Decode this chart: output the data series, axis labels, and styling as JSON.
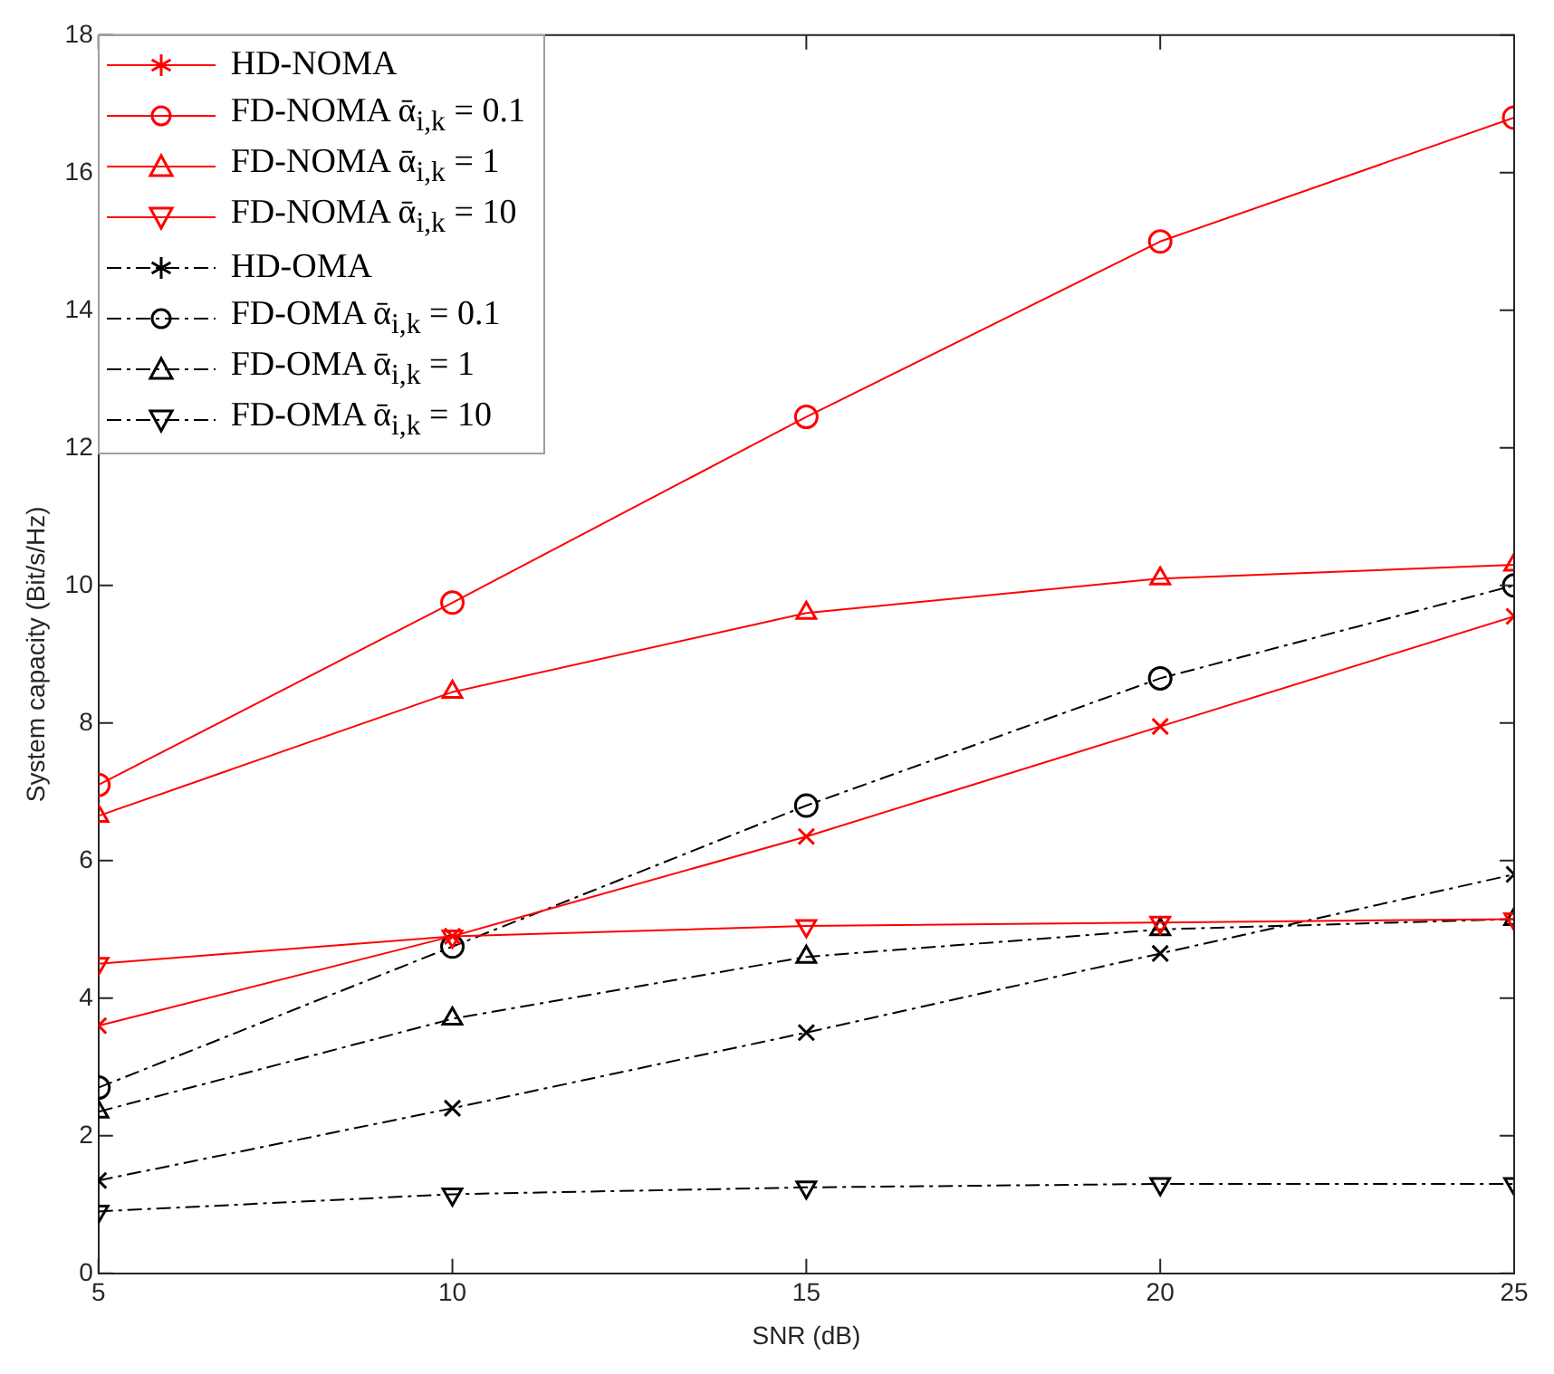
{
  "chart_data": {
    "type": "line",
    "xlabel": "SNR (dB)",
    "ylabel": "System capacity (Bit/s/Hz)",
    "x": [
      5,
      10,
      15,
      20,
      25
    ],
    "series": [
      {
        "name": "HD-NOMA",
        "color": "#ff0000",
        "marker": "cross",
        "line_style": "solid",
        "values": [
          3.6,
          4.9,
          6.35,
          7.95,
          9.55
        ]
      },
      {
        "name": "FD-NOMA ᾱ$_{i,k}$ = 0.1",
        "color": "#ff0000",
        "marker": "circle",
        "line_style": "solid",
        "values": [
          7.1,
          9.75,
          12.45,
          15.0,
          16.8
        ]
      },
      {
        "name": "FD-NOMA ᾱ$_{i,k}$ = 1",
        "color": "#ff0000",
        "marker": "triangle",
        "line_style": "solid",
        "values": [
          6.65,
          8.45,
          9.6,
          10.1,
          10.3
        ]
      },
      {
        "name": "FD-NOMA ᾱ$_{i,k}$ = 10",
        "color": "#ff0000",
        "marker": "triangle_down",
        "line_style": "solid",
        "values": [
          4.5,
          4.9,
          5.05,
          5.1,
          5.15
        ]
      },
      {
        "name": "HD-OMA",
        "color": "#000000",
        "marker": "cross",
        "line_style": "dashed",
        "values": [
          1.35,
          2.4,
          3.5,
          4.65,
          5.8
        ]
      },
      {
        "name": "FD-OMA ᾱ$_{i,k}$ = 0.1",
        "color": "#000000",
        "marker": "circle",
        "line_style": "dashed",
        "values": [
          2.7,
          4.75,
          6.8,
          8.65,
          10.0
        ]
      },
      {
        "name": "FD-OMA ᾱ$_{i,k}$ = 1",
        "color": "#000000",
        "marker": "triangle",
        "line_style": "dashed",
        "values": [
          2.35,
          3.7,
          4.6,
          5.0,
          5.15
        ]
      },
      {
        "name": "FD-OMA ᾱ$_{i,k}$ = 10",
        "color": "#000000",
        "marker": "triangle_down",
        "line_style": "dashed",
        "values": [
          0.9,
          1.15,
          1.25,
          1.3,
          1.3
        ]
      }
    ],
    "xlim": [
      5,
      25
    ],
    "xticks": [
      5,
      10,
      15,
      20,
      25
    ],
    "ylim": [
      0,
      18
    ],
    "yticks": [
      0,
      2,
      4,
      6,
      8,
      10,
      12,
      14,
      16,
      18
    ],
    "grid": false,
    "legend": "top left"
  }
}
